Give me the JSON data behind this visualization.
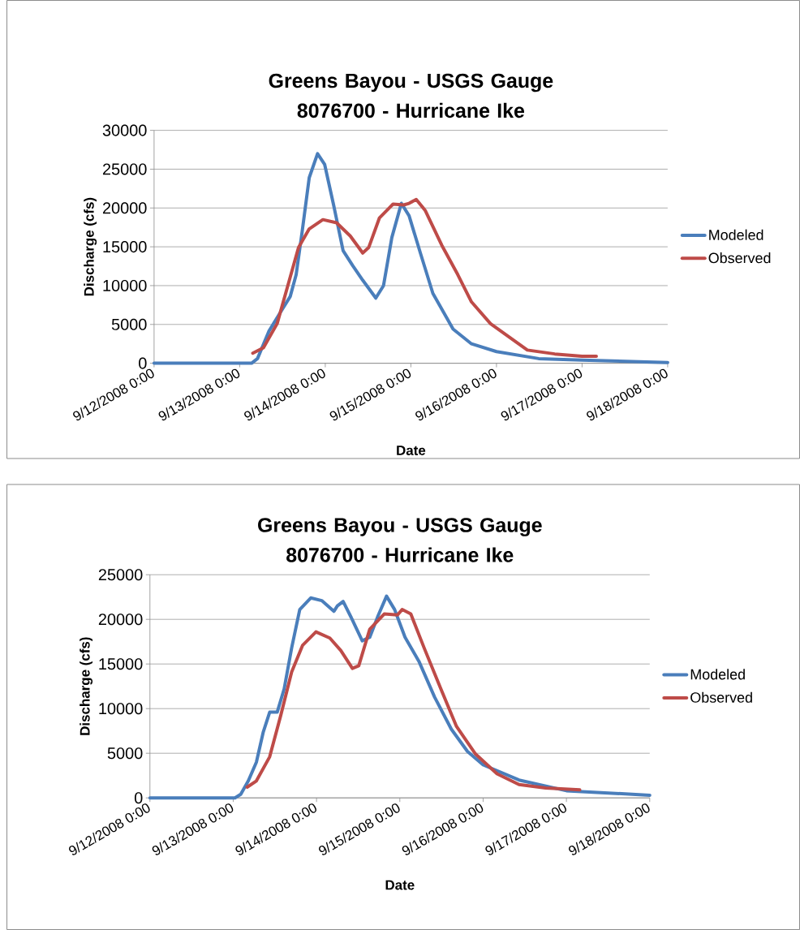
{
  "chart_data": [
    {
      "type": "line",
      "title": "Greens Bayou - USGS Gauge 8076700 - Hurricane Ike",
      "xlabel": "Date",
      "ylabel": "Discharge (cfs)",
      "xlim": [
        "2008-09-12T00:00",
        "2008-09-18T00:00"
      ],
      "xticks": [
        {
          "value": "2008-09-12T00:00",
          "label": "9/12/2008 0:00"
        },
        {
          "value": "2008-09-13T00:00",
          "label": "9/13/2008 0:00"
        },
        {
          "value": "2008-09-14T00:00",
          "label": "9/14/2008 0:00"
        },
        {
          "value": "2008-09-15T00:00",
          "label": "9/15/2008 0:00"
        },
        {
          "value": "2008-09-16T00:00",
          "label": "9/16/2008 0:00"
        },
        {
          "value": "2008-09-17T00:00",
          "label": "9/17/2008 0:00"
        },
        {
          "value": "2008-09-18T00:00",
          "label": "9/18/2008 0:00"
        }
      ],
      "ylim": [
        0,
        30000
      ],
      "yticks": [
        0,
        5000,
        10000,
        15000,
        20000,
        25000,
        30000
      ],
      "grid": "y",
      "legend": "right",
      "series": [
        {
          "name": "Modeled",
          "color": "#4a7ebb",
          "x": [
            "2008-09-12T00:00",
            "2008-09-13T03:20",
            "2008-09-13T05:00",
            "2008-09-13T08:10",
            "2008-09-13T11:20",
            "2008-09-13T14:10",
            "2008-09-13T15:50",
            "2008-09-13T17:30",
            "2008-09-13T19:30",
            "2008-09-13T21:50",
            "2008-09-13T23:50",
            "2008-09-14T02:20",
            "2008-09-14T05:00",
            "2008-09-14T07:40",
            "2008-09-14T10:30",
            "2008-09-14T14:10",
            "2008-09-14T16:20",
            "2008-09-14T18:40",
            "2008-09-14T21:20",
            "2008-09-14T23:30",
            "2008-09-15T02:40",
            "2008-09-15T06:10",
            "2008-09-15T11:50",
            "2008-09-15T17:00",
            "2008-09-16T00:00",
            "2008-09-16T11:50",
            "2008-09-17T00:00",
            "2008-09-18T00:00"
          ],
          "values": [
            0,
            0,
            600,
            4100,
            6500,
            8600,
            11400,
            16900,
            23900,
            27000,
            25600,
            20400,
            14500,
            12600,
            10700,
            8400,
            10000,
            16200,
            20600,
            19000,
            14200,
            9000,
            4400,
            2500,
            1500,
            600,
            400,
            100
          ]
        },
        {
          "name": "Observed",
          "color": "#be4b48",
          "x": [
            "2008-09-13T03:40",
            "2008-09-13T06:40",
            "2008-09-13T10:30",
            "2008-09-13T13:30",
            "2008-09-13T16:30",
            "2008-09-13T19:30",
            "2008-09-13T23:20",
            "2008-09-14T03:10",
            "2008-09-14T07:00",
            "2008-09-14T10:30",
            "2008-09-14T12:10",
            "2008-09-14T15:10",
            "2008-09-14T19:00",
            "2008-09-14T22:00",
            "2008-09-14T23:30",
            "2008-09-15T01:30",
            "2008-09-15T04:00",
            "2008-09-15T08:40",
            "2008-09-15T13:10",
            "2008-09-15T17:00",
            "2008-09-15T22:20",
            "2008-09-16T08:40",
            "2008-09-16T16:20",
            "2008-09-17T00:00",
            "2008-09-17T04:00"
          ],
          "values": [
            1300,
            2000,
            5100,
            10000,
            14900,
            17300,
            18500,
            18100,
            16400,
            14200,
            14900,
            18700,
            20500,
            20400,
            20600,
            21100,
            19700,
            15200,
            11400,
            7900,
            5100,
            1700,
            1200,
            900,
            900
          ]
        }
      ]
    },
    {
      "type": "line",
      "title": "Greens Bayou - USGS Gauge 8076700 - Hurricane Ike",
      "xlabel": "Date",
      "ylabel": "Discharge (cfs)",
      "xlim": [
        "2008-09-12T00:00",
        "2008-09-18T00:00"
      ],
      "xticks": [
        {
          "value": "2008-09-12T00:00",
          "label": "9/12/2008 0:00"
        },
        {
          "value": "2008-09-13T00:00",
          "label": "9/13/2008 0:00"
        },
        {
          "value": "2008-09-14T00:00",
          "label": "9/14/2008 0:00"
        },
        {
          "value": "2008-09-15T00:00",
          "label": "9/15/2008 0:00"
        },
        {
          "value": "2008-09-16T00:00",
          "label": "9/16/2008 0:00"
        },
        {
          "value": "2008-09-17T00:00",
          "label": "9/17/2008 0:00"
        },
        {
          "value": "2008-09-18T00:00",
          "label": "9/18/2008 0:00"
        }
      ],
      "ylim": [
        0,
        25000
      ],
      "yticks": [
        0,
        5000,
        10000,
        15000,
        20000,
        25000
      ],
      "grid": "y",
      "legend": "right",
      "series": [
        {
          "name": "Modeled",
          "color": "#4a7ebb",
          "x": [
            "2008-09-12T00:00",
            "2008-09-13T00:30",
            "2008-09-13T02:10",
            "2008-09-13T04:20",
            "2008-09-13T06:40",
            "2008-09-13T08:40",
            "2008-09-13T10:30",
            "2008-09-13T12:40",
            "2008-09-13T14:40",
            "2008-09-13T16:50",
            "2008-09-13T19:10",
            "2008-09-13T22:20",
            "2008-09-14T01:30",
            "2008-09-14T05:00",
            "2008-09-14T06:00",
            "2008-09-14T07:40",
            "2008-09-14T10:00",
            "2008-09-14T13:10",
            "2008-09-14T15:20",
            "2008-09-14T17:50",
            "2008-09-14T20:10",
            "2008-09-14T22:30",
            "2008-09-15T01:30",
            "2008-09-15T05:30",
            "2008-09-15T10:00",
            "2008-09-15T14:50",
            "2008-09-15T19:30",
            "2008-09-16T00:00",
            "2008-09-16T10:20",
            "2008-09-17T00:00",
            "2008-09-18T00:00"
          ],
          "values": [
            0,
            0,
            400,
            1900,
            4000,
            7400,
            9600,
            9600,
            12200,
            16800,
            21100,
            22400,
            22100,
            20900,
            21500,
            22000,
            20200,
            17600,
            18000,
            20500,
            22600,
            21100,
            18000,
            15300,
            11300,
            7700,
            5200,
            3700,
            2000,
            800,
            300
          ]
        },
        {
          "name": "Observed",
          "color": "#be4b48",
          "x": [
            "2008-09-13T04:00",
            "2008-09-13T06:40",
            "2008-09-13T10:30",
            "2008-09-13T13:40",
            "2008-09-13T16:50",
            "2008-09-13T20:00",
            "2008-09-13T23:50",
            "2008-09-14T03:50",
            "2008-09-14T07:00",
            "2008-09-14T10:20",
            "2008-09-14T12:10",
            "2008-09-14T15:20",
            "2008-09-14T19:30",
            "2008-09-14T23:20",
            "2008-09-15T00:40",
            "2008-09-15T03:10",
            "2008-09-15T07:00",
            "2008-09-15T11:50",
            "2008-09-15T16:20",
            "2008-09-15T21:50",
            "2008-09-16T04:00",
            "2008-09-16T10:20",
            "2008-09-16T18:00",
            "2008-09-17T03:50"
          ],
          "values": [
            1200,
            1900,
            4600,
            9200,
            14100,
            17100,
            18600,
            17900,
            16500,
            14500,
            14800,
            18900,
            20600,
            20500,
            21100,
            20600,
            16800,
            12200,
            8000,
            4900,
            2700,
            1500,
            1100,
            900
          ]
        }
      ]
    }
  ]
}
